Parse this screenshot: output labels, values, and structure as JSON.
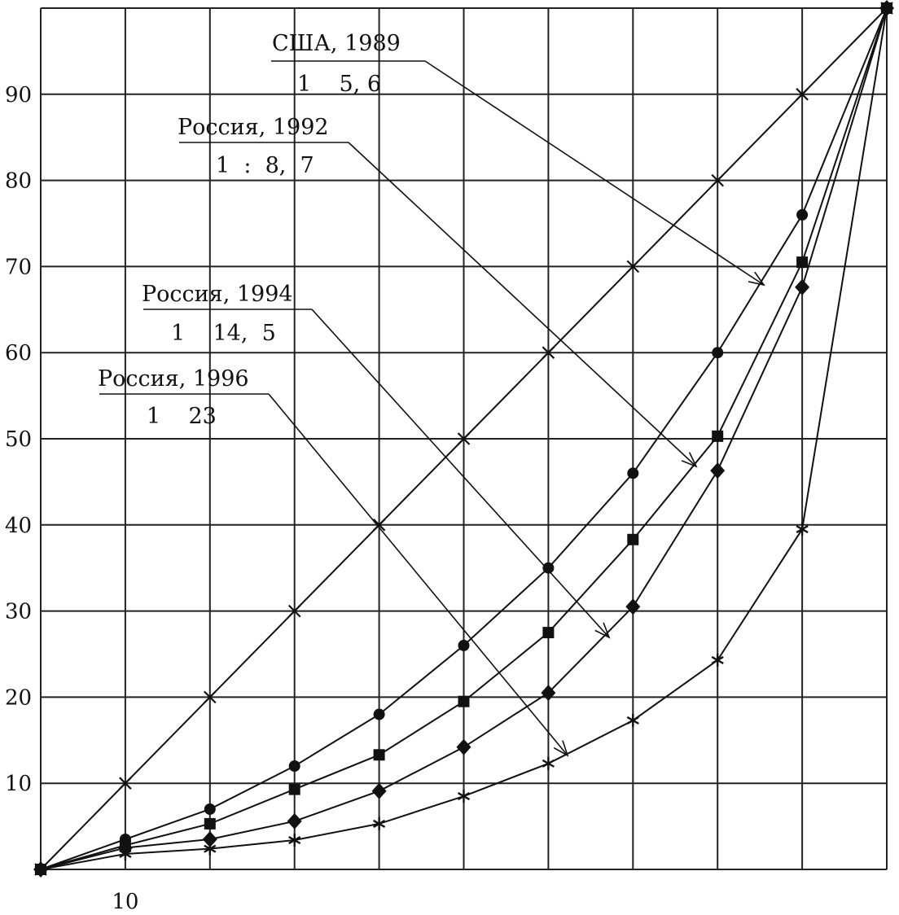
{
  "chart_data": {
    "type": "line",
    "title": "",
    "xlabel": "",
    "ylabel": "",
    "xlim": [
      0,
      100
    ],
    "ylim": [
      0,
      100
    ],
    "grid": true,
    "x_tick_labels": [
      {
        "value": 10,
        "label": "10"
      }
    ],
    "y_tick_labels": [
      {
        "value": 10,
        "label": "10"
      },
      {
        "value": 20,
        "label": "20"
      },
      {
        "value": 30,
        "label": "30"
      },
      {
        "value": 40,
        "label": "40"
      },
      {
        "value": 50,
        "label": "50"
      },
      {
        "value": 60,
        "label": "60"
      },
      {
        "value": 70,
        "label": "70"
      },
      {
        "value": 80,
        "label": "80"
      },
      {
        "value": 90,
        "label": "90"
      }
    ],
    "series": [
      {
        "marker": "x",
        "x": [
          0,
          10,
          20,
          30,
          40,
          50,
          60,
          70,
          80,
          90,
          100
        ],
        "y": [
          0,
          10,
          20,
          30,
          40,
          50,
          60,
          70,
          80,
          90,
          100
        ]
      },
      {
        "marker": "circle",
        "x": [
          0,
          10,
          20,
          30,
          40,
          50,
          60,
          70,
          80,
          90,
          100
        ],
        "y": [
          0,
          3.5,
          7,
          12,
          18,
          26,
          35,
          46,
          60,
          76,
          100
        ]
      },
      {
        "marker": "square",
        "x": [
          0,
          10,
          20,
          30,
          40,
          50,
          60,
          70,
          80,
          90,
          100
        ],
        "y": [
          0,
          2.8,
          5.3,
          9.3,
          13.3,
          19.5,
          27.5,
          38.3,
          50.3,
          70.5,
          100
        ]
      },
      {
        "marker": "diamond",
        "x": [
          0,
          10,
          20,
          30,
          40,
          50,
          60,
          70,
          80,
          90,
          100
        ],
        "y": [
          0,
          2.5,
          3.5,
          5.6,
          9.1,
          14.2,
          20.5,
          30.5,
          46.3,
          67.6,
          100
        ]
      },
      {
        "marker": "asterisk",
        "x": [
          0,
          10,
          20,
          30,
          40,
          50,
          60,
          70,
          80,
          90,
          100
        ],
        "y": [
          0,
          1.8,
          2.4,
          3.4,
          5.3,
          8.5,
          12.3,
          17.3,
          24.3,
          39.5,
          100
        ]
      }
    ],
    "annotations": [
      {
        "label": "США, 1989",
        "ratio": "1    5, 6"
      },
      {
        "label": "Россия, 1992",
        "ratio": "1  :  8,  7"
      },
      {
        "label": "Россия, 1994",
        "ratio": "1    14,  5"
      },
      {
        "label": "Россия, 1996",
        "ratio": "1    23"
      }
    ]
  }
}
